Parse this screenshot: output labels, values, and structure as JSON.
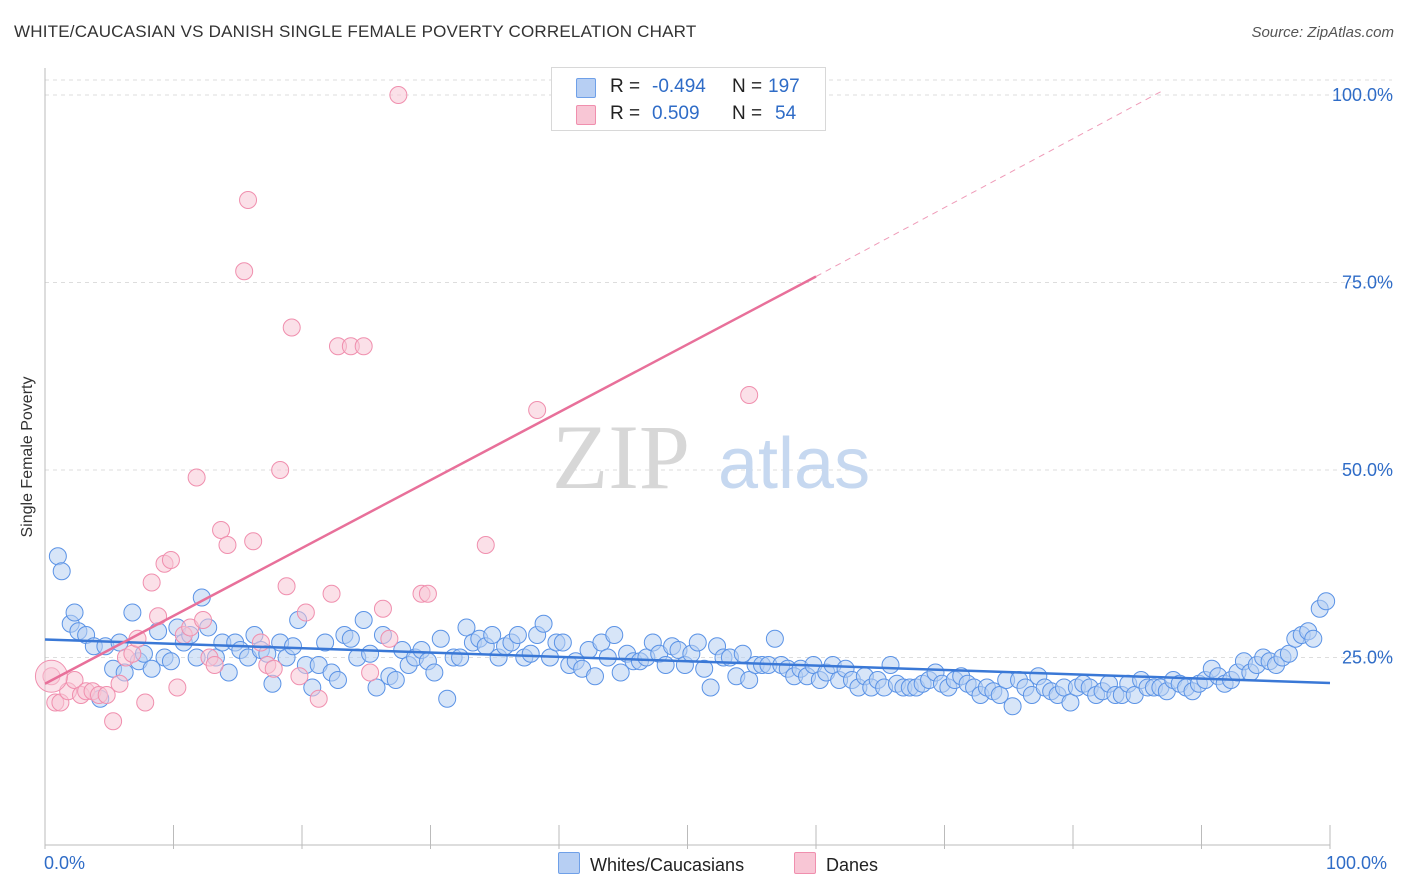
{
  "title": "WHITE/CAUCASIAN VS DANISH SINGLE FEMALE POVERTY CORRELATION CHART",
  "source": "Source: ZipAtlas.com",
  "watermark": {
    "zip": "ZIP",
    "atlas": "atlas"
  },
  "legend": {
    "r_label": "R =",
    "n_label": "N =",
    "rows": [
      {
        "r": "-0.494",
        "n": "197",
        "color": "#6fa0e8",
        "fill": "#b7cff3"
      },
      {
        "r": "0.509",
        "n": "54",
        "color": "#f08fae",
        "fill": "#f8c6d5"
      }
    ]
  },
  "bottom_legend": [
    {
      "label": "Whites/Caucasians",
      "color": "#6fa0e8",
      "fill": "#b7cff3"
    },
    {
      "label": "Danes",
      "color": "#f08fae",
      "fill": "#f8c6d5"
    }
  ],
  "chart_data": {
    "type": "scatter",
    "title": "WHITE/CAUCASIAN VS DANISH SINGLE FEMALE POVERTY CORRELATION CHART",
    "xlabel": "",
    "ylabel": "Single Female Poverty",
    "x_tick_labels": [
      "0.0%",
      "100.0%"
    ],
    "y_tick_labels": [
      "25.0%",
      "50.0%",
      "75.0%",
      "100.0%"
    ],
    "y_ticks": [
      25,
      50,
      75,
      100
    ],
    "xlim": [
      0,
      100
    ],
    "ylim": [
      0,
      102
    ],
    "grid": true,
    "legend_position": "top-center",
    "series": [
      {
        "name": "Whites/Caucasians",
        "color": "#5b93e6",
        "trend": {
          "x0": 0,
          "y0": 27.4,
          "x1": 100,
          "y1": 21.6,
          "color": "#3a78d6"
        },
        "points": [
          [
            1,
            38.5
          ],
          [
            1.3,
            36.5
          ],
          [
            2,
            29.5
          ],
          [
            2.3,
            31
          ],
          [
            2.6,
            28.5
          ],
          [
            3.2,
            28
          ],
          [
            3.8,
            26.5
          ],
          [
            4.3,
            19.5
          ],
          [
            4.7,
            26.5
          ],
          [
            5.3,
            23.5
          ],
          [
            5.8,
            27
          ],
          [
            6.2,
            23
          ],
          [
            6.8,
            31
          ],
          [
            7.3,
            24.5
          ],
          [
            7.7,
            25.5
          ],
          [
            8.3,
            23.5
          ],
          [
            8.8,
            28.5
          ],
          [
            9.3,
            25
          ],
          [
            9.8,
            24.5
          ],
          [
            10.3,
            29
          ],
          [
            10.8,
            27
          ],
          [
            11.3,
            28
          ],
          [
            11.8,
            25
          ],
          [
            12.2,
            33
          ],
          [
            12.7,
            29
          ],
          [
            13.3,
            25
          ],
          [
            13.8,
            27
          ],
          [
            14.3,
            23
          ],
          [
            14.8,
            27
          ],
          [
            15.2,
            26
          ],
          [
            15.8,
            25
          ],
          [
            16.3,
            28
          ],
          [
            16.8,
            26
          ],
          [
            17.3,
            25.5
          ],
          [
            17.7,
            21.5
          ],
          [
            18.3,
            27
          ],
          [
            18.8,
            25
          ],
          [
            19.3,
            26.5
          ],
          [
            19.7,
            30
          ],
          [
            20.3,
            24
          ],
          [
            20.8,
            21
          ],
          [
            21.3,
            24
          ],
          [
            21.8,
            27
          ],
          [
            22.3,
            23
          ],
          [
            22.8,
            22
          ],
          [
            23.3,
            28
          ],
          [
            23.8,
            27.5
          ],
          [
            24.3,
            25
          ],
          [
            24.8,
            30
          ],
          [
            25.3,
            25.5
          ],
          [
            25.8,
            21
          ],
          [
            26.3,
            28
          ],
          [
            26.8,
            22.5
          ],
          [
            27.3,
            22
          ],
          [
            27.8,
            26
          ],
          [
            28.3,
            24
          ],
          [
            28.8,
            25
          ],
          [
            29.3,
            26
          ],
          [
            29.8,
            24.5
          ],
          [
            30.3,
            23
          ],
          [
            30.8,
            27.5
          ],
          [
            31.3,
            19.5
          ],
          [
            31.8,
            25
          ],
          [
            32.3,
            25
          ],
          [
            32.8,
            29
          ],
          [
            33.3,
            27
          ],
          [
            33.8,
            27.5
          ],
          [
            34.3,
            26.5
          ],
          [
            34.8,
            28
          ],
          [
            35.3,
            25
          ],
          [
            35.8,
            26.5
          ],
          [
            36.3,
            27
          ],
          [
            36.8,
            28
          ],
          [
            37.3,
            25
          ],
          [
            37.8,
            25.5
          ],
          [
            38.3,
            28
          ],
          [
            38.8,
            29.5
          ],
          [
            39.3,
            25
          ],
          [
            39.8,
            27
          ],
          [
            40.3,
            27
          ],
          [
            40.8,
            24
          ],
          [
            41.3,
            24.5
          ],
          [
            41.8,
            23.5
          ],
          [
            42.3,
            26
          ],
          [
            42.8,
            22.5
          ],
          [
            43.3,
            27
          ],
          [
            43.8,
            25
          ],
          [
            44.3,
            28
          ],
          [
            44.8,
            23
          ],
          [
            45.3,
            25.5
          ],
          [
            45.8,
            24.5
          ],
          [
            46.3,
            24.5
          ],
          [
            46.8,
            25
          ],
          [
            47.3,
            27
          ],
          [
            47.8,
            25.5
          ],
          [
            48.3,
            24
          ],
          [
            48.8,
            26.5
          ],
          [
            49.3,
            26
          ],
          [
            49.8,
            24
          ],
          [
            50.3,
            25.5
          ],
          [
            50.8,
            27
          ],
          [
            51.3,
            23.5
          ],
          [
            51.8,
            21
          ],
          [
            52.3,
            26.5
          ],
          [
            52.8,
            25
          ],
          [
            53.3,
            25
          ],
          [
            53.8,
            22.5
          ],
          [
            54.3,
            25.5
          ],
          [
            54.8,
            22
          ],
          [
            55.3,
            24
          ],
          [
            55.8,
            24
          ],
          [
            56.3,
            24
          ],
          [
            56.8,
            27.5
          ],
          [
            57.3,
            24
          ],
          [
            57.8,
            23.5
          ],
          [
            58.3,
            22.5
          ],
          [
            58.8,
            23.5
          ],
          [
            59.3,
            22.5
          ],
          [
            59.8,
            24
          ],
          [
            60.3,
            22
          ],
          [
            60.8,
            23
          ],
          [
            61.3,
            24
          ],
          [
            61.8,
            22
          ],
          [
            62.3,
            23.5
          ],
          [
            62.8,
            22
          ],
          [
            63.3,
            21
          ],
          [
            63.8,
            22.5
          ],
          [
            64.3,
            21
          ],
          [
            64.8,
            22
          ],
          [
            65.3,
            21
          ],
          [
            65.8,
            24
          ],
          [
            66.3,
            21.5
          ],
          [
            66.8,
            21
          ],
          [
            67.3,
            21
          ],
          [
            67.8,
            21
          ],
          [
            68.3,
            21.5
          ],
          [
            68.8,
            22
          ],
          [
            69.3,
            23
          ],
          [
            69.8,
            21.5
          ],
          [
            70.3,
            21
          ],
          [
            70.8,
            22
          ],
          [
            71.3,
            22.5
          ],
          [
            71.8,
            21.5
          ],
          [
            72.3,
            21
          ],
          [
            72.8,
            20
          ],
          [
            73.3,
            21
          ],
          [
            73.8,
            20.5
          ],
          [
            74.3,
            20
          ],
          [
            74.8,
            22
          ],
          [
            75.3,
            18.5
          ],
          [
            75.8,
            22
          ],
          [
            76.3,
            21
          ],
          [
            76.8,
            20
          ],
          [
            77.3,
            22.5
          ],
          [
            77.8,
            21
          ],
          [
            78.3,
            20.5
          ],
          [
            78.8,
            20
          ],
          [
            79.3,
            21
          ],
          [
            79.8,
            19
          ],
          [
            80.3,
            21
          ],
          [
            80.8,
            21.5
          ],
          [
            81.3,
            21
          ],
          [
            81.8,
            20
          ],
          [
            82.3,
            20.5
          ],
          [
            82.8,
            21.5
          ],
          [
            83.3,
            20
          ],
          [
            83.8,
            20
          ],
          [
            84.3,
            21.5
          ],
          [
            84.8,
            20
          ],
          [
            85.3,
            22
          ],
          [
            85.8,
            21
          ],
          [
            86.3,
            21
          ],
          [
            86.8,
            21
          ],
          [
            87.3,
            20.5
          ],
          [
            87.8,
            22
          ],
          [
            88.3,
            21.5
          ],
          [
            88.8,
            21
          ],
          [
            89.3,
            20.5
          ],
          [
            89.8,
            21.5
          ],
          [
            90.3,
            22
          ],
          [
            90.8,
            23.5
          ],
          [
            91.3,
            22.5
          ],
          [
            91.8,
            21.5
          ],
          [
            92.3,
            22
          ],
          [
            92.8,
            23
          ],
          [
            93.3,
            24.5
          ],
          [
            93.8,
            23
          ],
          [
            94.3,
            24
          ],
          [
            94.8,
            25
          ],
          [
            95.3,
            24.5
          ],
          [
            95.8,
            24
          ],
          [
            96.3,
            25
          ],
          [
            96.8,
            25.5
          ],
          [
            97.3,
            27.5
          ],
          [
            97.8,
            28
          ],
          [
            98.3,
            28.5
          ],
          [
            98.7,
            27.5
          ],
          [
            99.2,
            31.5
          ],
          [
            99.7,
            32.5
          ]
        ]
      },
      {
        "name": "Danes",
        "color": "#f08fae",
        "trend": {
          "x0": 0,
          "y0": 21.5,
          "x1": 60,
          "y1": 75.8,
          "dash_to_x": 87,
          "dash_to_y": 100.6,
          "color": "#e8709a"
        },
        "points": [
          [
            0.5,
            22.5
          ],
          [
            0.8,
            19
          ],
          [
            1.2,
            19
          ],
          [
            1.8,
            20.5
          ],
          [
            2.3,
            22
          ],
          [
            2.8,
            20
          ],
          [
            3.2,
            20.5
          ],
          [
            3.7,
            20.5
          ],
          [
            4.2,
            20
          ],
          [
            4.8,
            20
          ],
          [
            5.3,
            16.5
          ],
          [
            5.8,
            21.5
          ],
          [
            6.3,
            25
          ],
          [
            6.8,
            25.5
          ],
          [
            7.2,
            27.5
          ],
          [
            7.8,
            19
          ],
          [
            8.3,
            35
          ],
          [
            8.8,
            30.5
          ],
          [
            9.3,
            37.5
          ],
          [
            9.8,
            38
          ],
          [
            10.3,
            21
          ],
          [
            10.8,
            28
          ],
          [
            11.3,
            29
          ],
          [
            11.8,
            49
          ],
          [
            12.3,
            30
          ],
          [
            12.8,
            25
          ],
          [
            13.2,
            24
          ],
          [
            13.7,
            42
          ],
          [
            14.2,
            40
          ],
          [
            15.8,
            86
          ],
          [
            16.8,
            27
          ],
          [
            17.3,
            24
          ],
          [
            15.5,
            76.5
          ],
          [
            16.2,
            40.5
          ],
          [
            17.8,
            23.5
          ],
          [
            18.3,
            50
          ],
          [
            18.8,
            34.5
          ],
          [
            19.2,
            69
          ],
          [
            19.8,
            22.5
          ],
          [
            20.3,
            31
          ],
          [
            21.3,
            19.5
          ],
          [
            22.3,
            33.5
          ],
          [
            22.8,
            66.5
          ],
          [
            23.8,
            66.5
          ],
          [
            24.8,
            66.5
          ],
          [
            25.3,
            23
          ],
          [
            26.3,
            31.5
          ],
          [
            26.8,
            27.5
          ],
          [
            27.5,
            100
          ],
          [
            29.3,
            33.5
          ],
          [
            29.8,
            33.5
          ],
          [
            34.3,
            40
          ],
          [
            38.3,
            58
          ],
          [
            54.8,
            60
          ]
        ]
      }
    ]
  }
}
